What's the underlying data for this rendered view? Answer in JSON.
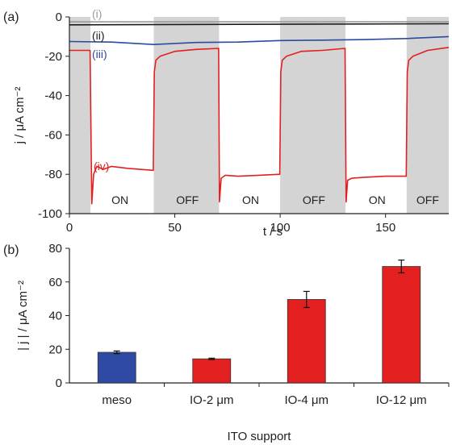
{
  "chart_data": [
    {
      "panel": "(a)",
      "type": "line",
      "xlabel": "t / s",
      "ylabel": "j / μA cm⁻²",
      "xlim": [
        0,
        180
      ],
      "ylim": [
        -100,
        0
      ],
      "xticks": [
        0,
        50,
        100,
        150
      ],
      "yticks": [
        0,
        -20,
        -40,
        -60,
        -80,
        -100
      ],
      "grid": false,
      "off_intervals": [
        [
          0,
          10
        ],
        [
          40,
          71
        ],
        [
          100,
          131
        ],
        [
          160,
          180
        ]
      ],
      "states": [
        {
          "label": "ON",
          "t": 24
        },
        {
          "label": "OFF",
          "t": 56
        },
        {
          "label": "ON",
          "t": 86
        },
        {
          "label": "OFF",
          "t": 116
        },
        {
          "label": "ON",
          "t": 146
        },
        {
          "label": "OFF",
          "t": 170
        }
      ],
      "series": [
        {
          "name": "(i)",
          "color": "#999999",
          "x": [
            0,
            180
          ],
          "y": [
            -2.5,
            -2.5
          ]
        },
        {
          "name": "(ii)",
          "color": "#1a1a1a",
          "x": [
            0,
            180
          ],
          "y": [
            -4,
            -3.5
          ]
        },
        {
          "name": "(iii)",
          "color": "#2b4aa0",
          "x": [
            0,
            20,
            40,
            60,
            80,
            100,
            120,
            140,
            160,
            180
          ],
          "y": [
            -12.5,
            -12.8,
            -14,
            -13,
            -12.8,
            -12,
            -11.8,
            -11.5,
            -11,
            -10
          ]
        },
        {
          "name": "(iv)",
          "color": "#e41f1f",
          "x": [
            0,
            9.8,
            10.6,
            11.5,
            13,
            16,
            20,
            28,
            39.8,
            40.3,
            41,
            43,
            50,
            60,
            70.8,
            71.2,
            72,
            74,
            80,
            90,
            99.8,
            100.3,
            101,
            103,
            110,
            120,
            130.8,
            131.3,
            132,
            134,
            140,
            150,
            159.8,
            160.3,
            161,
            163,
            170,
            180
          ],
          "y": [
            -17,
            -17,
            -95,
            -80,
            -76,
            -77.5,
            -76,
            -77,
            -78,
            -28,
            -22,
            -20,
            -17.5,
            -16.5,
            -16,
            -94,
            -82,
            -80.5,
            -81,
            -80.5,
            -80,
            -28,
            -22,
            -20,
            -17.5,
            -17,
            -16,
            -94,
            -83,
            -82,
            -81.5,
            -81,
            -81,
            -28,
            -22,
            -20,
            -17,
            -15.5
          ]
        }
      ]
    },
    {
      "panel": "(b)",
      "type": "bar",
      "xlabel": "ITO support",
      "ylabel": "| j | / μA cm⁻²",
      "ylim": [
        0,
        80
      ],
      "yticks": [
        0,
        20,
        40,
        60,
        80
      ],
      "grid": false,
      "categories": [
        "meso",
        "IO-2 μm",
        "IO-4 μm",
        "IO-12 μm"
      ],
      "values": [
        18.2,
        14.3,
        49.6,
        69.2
      ],
      "errors": [
        0.8,
        0.4,
        4.8,
        3.8
      ],
      "colors": [
        "#2e4aa3",
        "#e41f1f",
        "#e41f1f",
        "#e41f1f"
      ]
    }
  ],
  "panel_labels": {
    "a": "(a)",
    "b": "(b)"
  },
  "curve_labels": {
    "i": "(i)",
    "ii": "(ii)",
    "iii": "(iii)",
    "iv": "(iv)"
  }
}
